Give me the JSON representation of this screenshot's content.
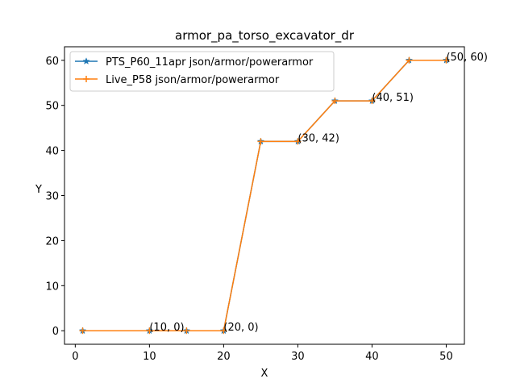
{
  "chart_data": {
    "type": "line",
    "title": "armor_pa_torso_excavator_dr",
    "xlabel": "X",
    "ylabel": "Y",
    "xlim": [
      -1.45,
      52.45
    ],
    "ylim": [
      -3,
      63
    ],
    "xticks": [
      0,
      10,
      20,
      30,
      40,
      50
    ],
    "yticks": [
      0,
      10,
      20,
      30,
      40,
      50,
      60
    ],
    "grid": false,
    "legend_position": "top-left",
    "x": [
      1,
      10,
      15,
      20,
      25,
      30,
      35,
      40,
      45,
      50
    ],
    "series": [
      {
        "name": "PTS_P60_11apr json/armor/powerarmor",
        "color": "#1f77b4",
        "marker": "star",
        "values": [
          0,
          0,
          0,
          0,
          42,
          42,
          51,
          51,
          60,
          60
        ]
      },
      {
        "name": "Live_P58 json/armor/powerarmor",
        "color": "#ff7f0e",
        "marker": "plus",
        "values": [
          0,
          0,
          0,
          0,
          42,
          42,
          51,
          51,
          60,
          60
        ]
      }
    ],
    "annotations": [
      {
        "x": 10,
        "y": 0,
        "text": "(10, 0)"
      },
      {
        "x": 20,
        "y": 0,
        "text": "(20, 0)"
      },
      {
        "x": 30,
        "y": 42,
        "text": "(30, 42)"
      },
      {
        "x": 40,
        "y": 51,
        "text": "(40, 51)"
      },
      {
        "x": 50,
        "y": 60,
        "text": "(50, 60)"
      }
    ]
  }
}
